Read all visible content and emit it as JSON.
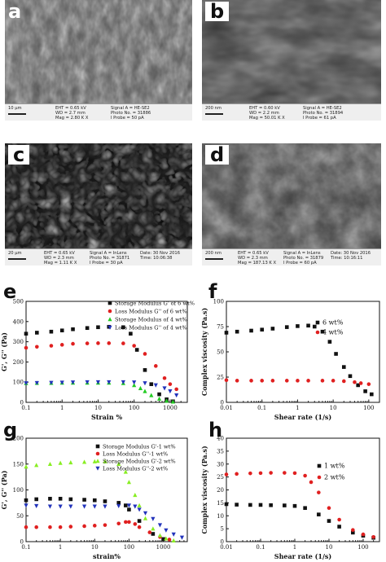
{
  "sem_panels": [
    {
      "id": "a",
      "info": {
        "scale": "10 μm",
        "eht": "EHT = 0.65 kV",
        "wd": "WD = 2.7 mm",
        "mag": "Mag = 2.80 K X",
        "signal": "Signal A = HE-SE2",
        "photo": "Photo No. = 31886",
        "probe": "I Probe = 50 pA",
        "time": ""
      }
    },
    {
      "id": "b",
      "info": {
        "scale": "200 nm",
        "eht": "EHT = 0.60 kV",
        "wd": "WD = 2.2 mm",
        "mag": "Mag = 50.01 K X",
        "signal": "Signal A = HE-SE2",
        "photo": "Photo No. = 31894",
        "probe": "I Probe = 61 pA",
        "time": ""
      }
    },
    {
      "id": "c",
      "info": {
        "scale": "20 μm",
        "eht": "EHT = 0.65 kV",
        "wd": "WD = 2.3 mm",
        "mag": "Mag = 1.11 K X",
        "signal": "Signal A = InLens",
        "photo": "Photo No. = 31871",
        "probe": "I Probe = 30 pA",
        "date": "Date: 30 Nov 2016",
        "time": "Time: 10:06:38"
      }
    },
    {
      "id": "d",
      "info": {
        "scale": "200 nm",
        "eht": "EHT = 0.65 kV",
        "wd": "WD = 2.3 mm",
        "mag": "Mag = 187.13 K X",
        "signal": "Signal A = InLens",
        "photo": "Photo No. = 31879",
        "probe": "I Probe = 60 pA",
        "date": "Date: 30 Nov 2016",
        "time": "Time: 10:16:11"
      }
    }
  ],
  "chart_data": [
    {
      "id": "e",
      "type": "scatter",
      "xscale": "log",
      "xlabel": "Strain %",
      "ylabel": "G', G'' (Pa)",
      "xlim": [
        0.1,
        3000
      ],
      "ylim": [
        0,
        500
      ],
      "xticks": [
        "0.1",
        "1",
        "10",
        "100",
        "1000"
      ],
      "yticks": [
        "0",
        "100",
        "200",
        "300",
        "400",
        "500"
      ],
      "legend_position": "top-right",
      "series": [
        {
          "name": "Storage Modulus G' of 6 wt%",
          "color": "#111111",
          "marker": "square",
          "x": [
            0.1,
            0.2,
            0.5,
            1,
            2,
            5,
            10,
            20,
            50,
            80,
            120,
            200,
            300,
            500,
            800,
            1200
          ],
          "y": [
            340,
            345,
            350,
            356,
            362,
            368,
            372,
            374,
            372,
            340,
            260,
            160,
            90,
            40,
            15,
            5
          ]
        },
        {
          "name": "Loss Modulus G'' of 6 wt%",
          "color": "#e02020",
          "marker": "circle",
          "x": [
            0.1,
            0.2,
            0.5,
            1,
            2,
            5,
            10,
            20,
            50,
            100,
            200,
            400,
            700,
            1000,
            1500
          ],
          "y": [
            270,
            275,
            280,
            285,
            290,
            292,
            293,
            293,
            292,
            280,
            240,
            180,
            120,
            90,
            65
          ]
        },
        {
          "name": "Storage Modulus of 4 wt%",
          "color": "#22cc22",
          "marker": "triangle-up",
          "x": [
            0.1,
            0.2,
            0.5,
            1,
            2,
            5,
            10,
            20,
            50,
            100,
            150,
            200,
            300,
            500,
            800,
            1200
          ],
          "y": [
            95,
            96,
            96,
            97,
            97,
            97,
            97,
            97,
            95,
            85,
            70,
            55,
            35,
            18,
            8,
            3
          ]
        },
        {
          "name": "Loss Modulus G'' of 4 wt%",
          "color": "#2233bb",
          "marker": "triangle-down",
          "x": [
            0.1,
            0.2,
            0.5,
            1,
            2,
            5,
            10,
            20,
            50,
            100,
            200,
            400,
            700,
            1000,
            1500
          ],
          "y": [
            95,
            96,
            97,
            98,
            99,
            100,
            100,
            100,
            100,
            99,
            95,
            85,
            70,
            55,
            35
          ]
        }
      ]
    },
    {
      "id": "f",
      "type": "scatter",
      "xscale": "log",
      "xlabel": "Shear rate (1/s)",
      "ylabel": "Complex viscosity (Pa.s)",
      "xlim": [
        0.01,
        200
      ],
      "ylim": [
        0,
        100
      ],
      "xticks": [
        "0.01",
        "0.1",
        "1",
        "10",
        "100"
      ],
      "yticks": [
        "0",
        "25",
        "50",
        "75",
        "100"
      ],
      "legend_position": "top-right",
      "series": [
        {
          "name": "6 wt%",
          "color": "#111111",
          "marker": "square",
          "x": [
            0.01,
            0.02,
            0.05,
            0.1,
            0.2,
            0.5,
            1,
            2,
            3,
            5,
            8,
            12,
            20,
            30,
            50,
            80,
            120
          ],
          "y": [
            69,
            70,
            71,
            72,
            73,
            74.5,
            75.5,
            76,
            75,
            70,
            60,
            48,
            35,
            26,
            17,
            11,
            8
          ]
        },
        {
          "name": "4 wt%",
          "color": "#e02020",
          "marker": "circle",
          "x": [
            0.01,
            0.02,
            0.05,
            0.1,
            0.2,
            0.5,
            1,
            2,
            5,
            10,
            20,
            40,
            60,
            100
          ],
          "y": [
            22,
            21.5,
            21.5,
            21.5,
            21.5,
            21.5,
            21.5,
            21.5,
            21.5,
            21.5,
            21,
            20,
            19,
            18
          ]
        }
      ]
    },
    {
      "id": "g",
      "type": "scatter",
      "xscale": "log",
      "xlabel": "strain%",
      "ylabel": "G', G'' (Pa)",
      "xlim": [
        0.1,
        5000
      ],
      "ylim": [
        0,
        200
      ],
      "xticks": [
        "0.1",
        "1",
        "10",
        "100",
        "1000"
      ],
      "yticks": [
        "0",
        "50",
        "100",
        "150",
        "200"
      ],
      "legend_position": "top-right",
      "series": [
        {
          "name": "Storage Modulus G'-1 wt%",
          "color": "#111111",
          "marker": "square",
          "x": [
            0.1,
            0.2,
            0.5,
            1,
            2,
            5,
            10,
            20,
            50,
            80,
            100,
            200,
            500,
            1000
          ],
          "y": [
            80,
            82,
            83,
            83,
            82,
            81,
            80,
            78,
            75,
            70,
            62,
            40,
            15,
            5
          ]
        },
        {
          "name": "Loss Modulus G''-1 wt%",
          "color": "#e02020",
          "marker": "circle",
          "x": [
            0.1,
            0.2,
            0.5,
            1,
            2,
            5,
            10,
            20,
            50,
            80,
            100,
            150,
            200,
            400,
            800,
            1500
          ],
          "y": [
            28,
            28,
            28,
            28,
            29,
            30,
            31,
            32,
            35,
            38,
            38,
            34,
            28,
            18,
            9,
            4
          ]
        },
        {
          "name": "Storage Modulus G'-2 wt%",
          "color": "#88ee22",
          "marker": "triangle-up",
          "x": [
            0.1,
            0.2,
            0.5,
            1,
            2,
            5,
            10,
            20,
            50,
            80,
            100,
            150,
            200,
            300,
            500,
            800,
            1200,
            2000
          ],
          "y": [
            145,
            148,
            150,
            152,
            153,
            154,
            155,
            155,
            150,
            135,
            115,
            90,
            70,
            45,
            25,
            12,
            6,
            2
          ]
        },
        {
          "name": "Loss Modulus G''-2 wt%",
          "color": "#2233bb",
          "marker": "triangle-down",
          "x": [
            0.1,
            0.2,
            0.5,
            1,
            2,
            5,
            10,
            20,
            50,
            100,
            150,
            200,
            300,
            500,
            800,
            1200,
            2000,
            3500
          ],
          "y": [
            70,
            69,
            68,
            68,
            68,
            68,
            68,
            68,
            69,
            70,
            68,
            62,
            55,
            44,
            32,
            22,
            14,
            8
          ]
        }
      ]
    },
    {
      "id": "h",
      "type": "scatter",
      "xscale": "log",
      "xlabel": "Shear rate (1/s)",
      "ylabel": "Complex viscosity (Pa.s)",
      "xlim": [
        0.01,
        300
      ],
      "ylim": [
        0,
        40
      ],
      "xticks": [
        "0.01",
        "0.1",
        "1",
        "10",
        "100"
      ],
      "yticks": [
        "0",
        "5",
        "10",
        "15",
        "20",
        "25",
        "30",
        "35",
        "40"
      ],
      "legend_position": "top-right",
      "series": [
        {
          "name": "1 wt%",
          "color": "#111111",
          "marker": "square",
          "x": [
            0.01,
            0.02,
            0.05,
            0.1,
            0.2,
            0.5,
            1,
            2,
            5,
            10,
            20,
            50,
            100,
            200
          ],
          "y": [
            14.5,
            14.3,
            14.2,
            14.2,
            14.1,
            14,
            13.8,
            13,
            10.5,
            8,
            5.8,
            3.5,
            2.3,
            1.5
          ]
        },
        {
          "name": "2 wt%",
          "color": "#e02020",
          "marker": "circle",
          "x": [
            0.01,
            0.02,
            0.05,
            0.1,
            0.2,
            0.5,
            1,
            2,
            3,
            5,
            10,
            20,
            50,
            100,
            200
          ],
          "y": [
            26,
            26.2,
            26.4,
            26.5,
            26.6,
            26.6,
            26.5,
            25.5,
            23,
            19,
            13,
            8.5,
            4.5,
            2.8,
            1.8
          ]
        }
      ]
    }
  ]
}
